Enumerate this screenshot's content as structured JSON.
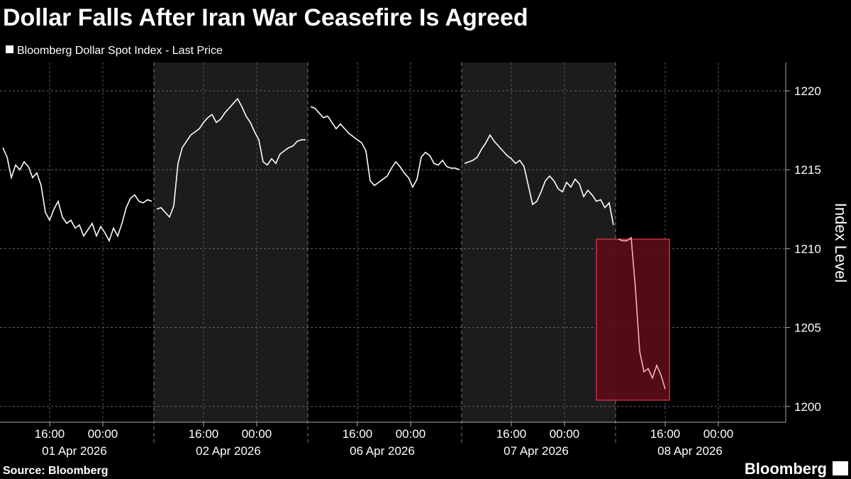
{
  "title": "Dollar Falls After Iran War Ceasefire Is Agreed",
  "chart_data": {
    "type": "line",
    "legend": "Bloomberg Dollar Spot Index - Last Price",
    "y_label": "Index Level",
    "color": "#ffffff",
    "ylim": [
      1199,
      1221.8
    ],
    "yticks": [
      1200,
      1205,
      1210,
      1215,
      1220
    ],
    "grid": true,
    "time_ticks": [
      "16:00",
      "00:00"
    ],
    "panels": [
      {
        "date": "01 Apr 2026",
        "values": [
          1216.4,
          1215.8,
          1214.5,
          1215.3,
          1215.0,
          1215.5,
          1215.2,
          1214.5,
          1214.8,
          1214.0,
          1212.3,
          1211.8,
          1212.5,
          1213.0,
          1212.0,
          1211.6,
          1211.8,
          1211.3,
          1211.5,
          1210.8,
          1211.2,
          1211.6,
          1210.8,
          1211.4,
          1211.0,
          1210.5,
          1211.3,
          1210.8,
          1211.6,
          1212.6,
          1213.2,
          1213.4,
          1213.0,
          1212.9,
          1213.1,
          1213.0
        ]
      },
      {
        "date": "02 Apr 2026",
        "values": [
          1212.5,
          1212.6,
          1212.3,
          1212.0,
          1212.7,
          1215.4,
          1216.4,
          1216.8,
          1217.2,
          1217.4,
          1217.6,
          1218.0,
          1218.3,
          1218.5,
          1218.0,
          1218.2,
          1218.6,
          1218.9,
          1219.2,
          1219.5,
          1219.0,
          1218.4,
          1218.0,
          1217.4,
          1216.9,
          1215.5,
          1215.3,
          1215.7,
          1215.4,
          1216.0,
          1216.2,
          1216.4,
          1216.5,
          1216.8,
          1216.9,
          1216.9
        ]
      },
      {
        "date": "06 Apr 2026",
        "values": [
          1219.0,
          1218.9,
          1218.6,
          1218.3,
          1218.4,
          1218.0,
          1217.6,
          1217.9,
          1217.6,
          1217.3,
          1217.1,
          1216.9,
          1216.7,
          1216.2,
          1214.3,
          1214.0,
          1214.2,
          1214.4,
          1214.6,
          1215.1,
          1215.5,
          1215.2,
          1214.8,
          1214.5,
          1213.9,
          1214.4,
          1215.8,
          1216.1,
          1215.9,
          1215.4,
          1215.3,
          1215.6,
          1215.2,
          1215.1,
          1215.1,
          1215.0
        ]
      },
      {
        "date": "07 Apr 2026",
        "values": [
          1215.4,
          1215.5,
          1215.6,
          1215.8,
          1216.3,
          1216.7,
          1217.2,
          1216.8,
          1216.5,
          1216.2,
          1215.9,
          1215.7,
          1215.4,
          1215.6,
          1215.2,
          1214.0,
          1212.8,
          1213.0,
          1213.6,
          1214.3,
          1214.6,
          1214.3,
          1213.8,
          1213.6,
          1214.2,
          1213.9,
          1214.4,
          1214.1,
          1213.3,
          1213.7,
          1213.4,
          1213.0,
          1213.1,
          1212.6,
          1212.9,
          1211.5
        ]
      },
      {
        "date": "08 Apr 2026",
        "values": [
          1210.6,
          1210.5,
          1210.5,
          1210.7,
          1207.5,
          1203.5,
          1202.2,
          1202.4,
          1201.8,
          1202.6,
          1202.0,
          1201.1
        ]
      }
    ],
    "highlight": {
      "from": 1200.4,
      "to": 1210.6,
      "fill": "#5e0c18",
      "stroke": "#c92d45",
      "line_color": "#f5b2bf"
    }
  },
  "source": "Source: Bloomberg",
  "brand": "Bloomberg"
}
